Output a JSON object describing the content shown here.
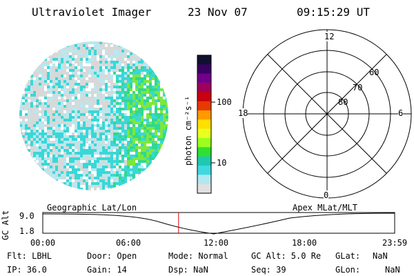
{
  "header": {
    "instrument": "Ultraviolet Imager",
    "date": "23 Nov 07",
    "time": "09:15:29 UT"
  },
  "colorbar": {
    "unit_label": "photon cm⁻²s⁻¹",
    "tick_100": "100",
    "tick_10": "10",
    "colors": [
      "#101030",
      "#3a0060",
      "#70008a",
      "#a0005a",
      "#c80010",
      "#e63a00",
      "#ff9a00",
      "#ffe000",
      "#e8ff20",
      "#9cff20",
      "#30e030",
      "#20c8b0",
      "#40d8e0",
      "#b0e8f0",
      "#e0e0e0"
    ]
  },
  "image": {
    "palette": {
      "gray": "#d8d8d8",
      "cyan": "#38d8d8",
      "lightblue": "#b8e8f0",
      "green": "#30d890",
      "lime": "#7de83a"
    }
  },
  "polar": {
    "labels": {
      "top": "12",
      "bottom": "0",
      "left": "18",
      "right": "6"
    },
    "rings": [
      "60",
      "70",
      "80"
    ]
  },
  "timeline": {
    "y_axis_label": "GC Alt",
    "y_top": "9.0",
    "y_bottom": "1.8",
    "left_title": "Geographic Lat/Lon",
    "right_title": "Apex MLat/MLT",
    "ticks": [
      "00:00",
      "06:00",
      "12:00",
      "18:00",
      "23:59"
    ],
    "marker_time_hours": 9.26,
    "marker_color": "#e00000"
  },
  "info": {
    "flt": "Flt: LBHL",
    "ip": "IP: 36.0",
    "door": "Door: Open",
    "gain": "Gain: 14",
    "mode": "Mode: Normal",
    "dsp": "Dsp:     NaN",
    "gcalt": "GC Alt: 5.0 Re",
    "seq": "Seq: 39",
    "glat": "GLat:",
    "glat_val": "NaN",
    "glon": "GLon:",
    "glon_val": "NaN"
  }
}
